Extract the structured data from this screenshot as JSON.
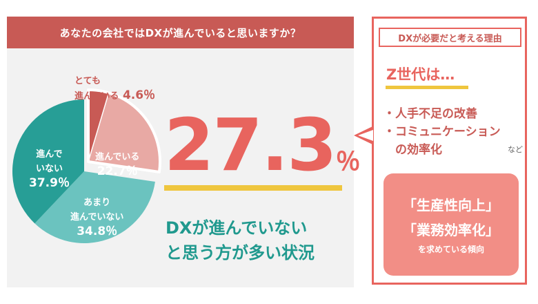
{
  "question": "あなたの会社ではDXが進んでいると思いますか？",
  "chart_data": {
    "type": "pie",
    "slices": [
      {
        "name_lines": [
          "とても",
          "進んでいる"
        ],
        "value": 4.6,
        "label": "4.6％",
        "color": "#c85a55"
      },
      {
        "name_lines": [
          "進んでいる"
        ],
        "value": 22.7,
        "label": "22.7％",
        "color": "#e8a9a4"
      },
      {
        "name_lines": [
          "あまり",
          "進んでいない"
        ],
        "value": 34.8,
        "label": "34.8％",
        "color": "#6bc3bf"
      },
      {
        "name_lines": [
          "進んで",
          "いない"
        ],
        "value": 37.9,
        "label": "37.9％",
        "color": "#279e96"
      }
    ],
    "highlight_total": "27.3"
  },
  "headline": {
    "value": "27.3",
    "unit": "％"
  },
  "summary": {
    "line1": "DXが進んでいない",
    "line2": "と思う方が多い状況"
  },
  "reasons": {
    "title": "DXが必要だと考える理由",
    "subtitle": "Z世代は…",
    "items": [
      "・人手不足の改善",
      "・コミュニケーション",
      "　の効率化"
    ],
    "etc": "など"
  },
  "goal": {
    "line1": "「生産性向上」",
    "line2": "「業務効率化」",
    "line3": "を求めている傾向"
  },
  "colors": {
    "accent": "#e8645e",
    "teal": "#20998e",
    "yellow": "#efc63e",
    "banner": "#c85a55"
  }
}
